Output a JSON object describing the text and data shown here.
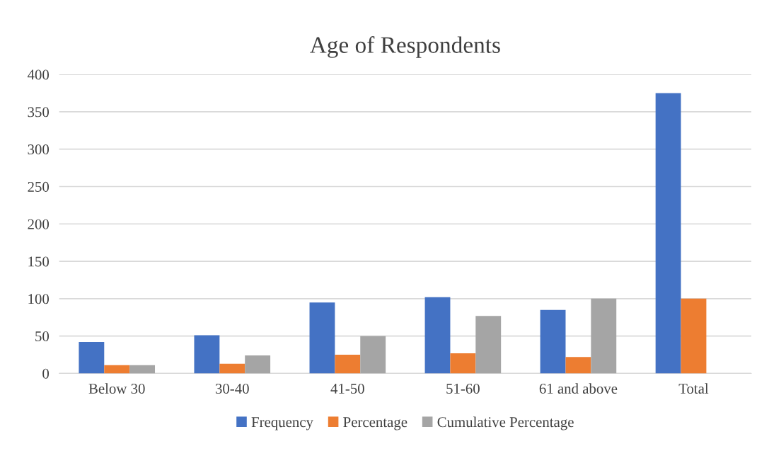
{
  "chart_data": {
    "type": "bar",
    "title": "Age of Respondents",
    "categories": [
      "Below 30",
      "30-40",
      "41-50",
      "51-60",
      "61 and above",
      "Total"
    ],
    "series": [
      {
        "name": "Frequency",
        "color": "#4472c4",
        "values": [
          42,
          51,
          95,
          102,
          85,
          375
        ]
      },
      {
        "name": "Percentage",
        "color": "#ed7d31",
        "values": [
          11,
          13,
          25,
          27,
          22,
          100
        ]
      },
      {
        "name": "Cumulative Percentage",
        "color": "#a5a5a5",
        "values": [
          11,
          24,
          50,
          77,
          100,
          null
        ]
      }
    ],
    "ylim": [
      0,
      400
    ],
    "yticks": [
      0,
      50,
      100,
      150,
      200,
      250,
      300,
      350,
      400
    ],
    "grid": "y",
    "legend": "bottom"
  }
}
